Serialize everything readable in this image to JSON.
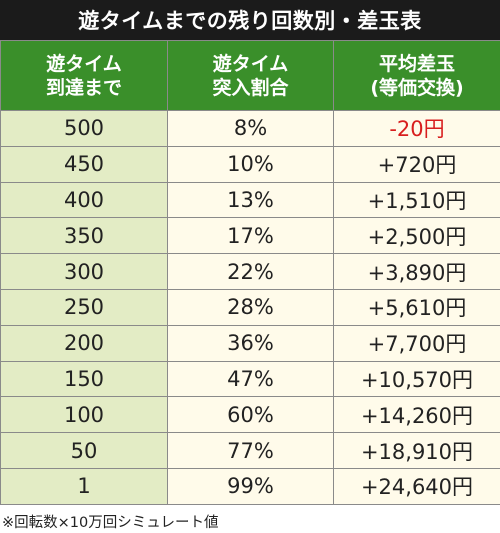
{
  "title": "遊タイムまでの残り回数別・差玉表",
  "headers": [
    [
      "遊タイム",
      "到達まで"
    ],
    [
      "遊タイム",
      "突入割合"
    ],
    [
      "平均差玉",
      "(等価交換)"
    ]
  ],
  "rows": [
    {
      "remaining": "500",
      "rate": "8%",
      "diff": "-20円"
    },
    {
      "remaining": "450",
      "rate": "10%",
      "diff": "+720円"
    },
    {
      "remaining": "400",
      "rate": "13%",
      "diff": "+1,510円"
    },
    {
      "remaining": "350",
      "rate": "17%",
      "diff": "+2,500円"
    },
    {
      "remaining": "300",
      "rate": "22%",
      "diff": "+3,890円"
    },
    {
      "remaining": "250",
      "rate": "28%",
      "diff": "+5,610円"
    },
    {
      "remaining": "200",
      "rate": "36%",
      "diff": "+7,700円"
    },
    {
      "remaining": "150",
      "rate": "47%",
      "diff": "+10,570円"
    },
    {
      "remaining": "100",
      "rate": "60%",
      "diff": "+14,260円"
    },
    {
      "remaining": "50",
      "rate": "77%",
      "diff": "+18,910円"
    },
    {
      "remaining": "1",
      "rate": "99%",
      "diff": "+24,640円"
    }
  ],
  "footnote": "※回転数×10万回シミュレート値",
  "colors": {
    "title_bg": "#1b1b1b",
    "header_bg": "#3a8f2a",
    "key_col_bg": "#e3ecc5",
    "value_bg": "#fffbea",
    "negative": "#d81e1e"
  }
}
